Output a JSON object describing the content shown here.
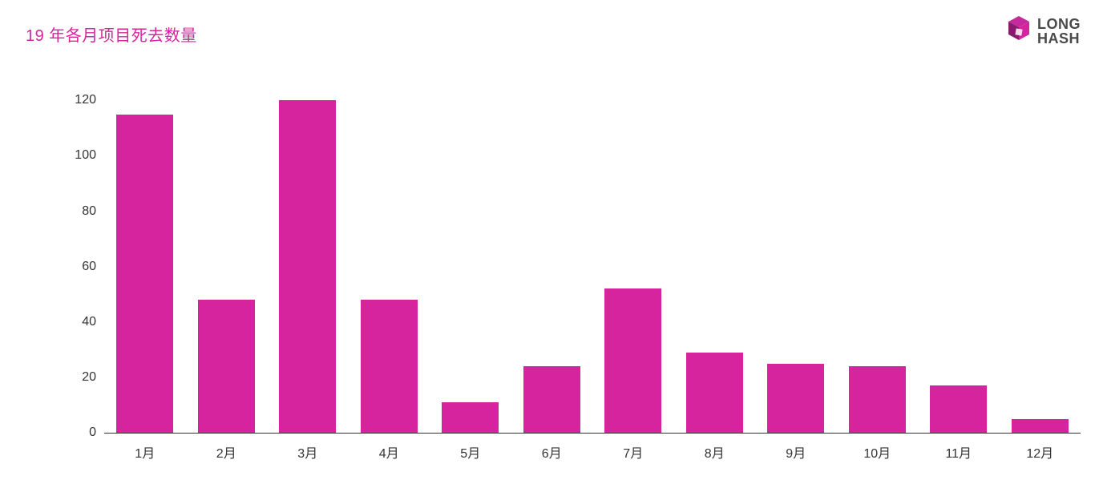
{
  "title": {
    "text": "19 年各月项目死去数量",
    "color": "#d6249f",
    "fontsize": 20
  },
  "logo": {
    "line1": "LONG",
    "line2": "HASH",
    "text_color": "#4a4a4a",
    "icon_primary": "#c5299b",
    "icon_secondary": "#8a1a6d"
  },
  "chart": {
    "type": "bar",
    "categories": [
      "1月",
      "2月",
      "3月",
      "4月",
      "5月",
      "6月",
      "7月",
      "8月",
      "9月",
      "10月",
      "11月",
      "12月"
    ],
    "values": [
      115,
      48,
      120,
      48,
      11,
      24,
      52,
      29,
      25,
      24,
      17,
      5
    ],
    "bar_color": "#d6249f",
    "background_color": "#ffffff",
    "axis_line_color": "#333333",
    "axis_label_color": "#333333",
    "axis_fontsize": 16,
    "title_fontsize": 20,
    "ylim": [
      0,
      125
    ],
    "yticks": [
      0,
      20,
      40,
      60,
      80,
      100,
      120
    ],
    "bar_width": 0.7,
    "grid": false
  }
}
